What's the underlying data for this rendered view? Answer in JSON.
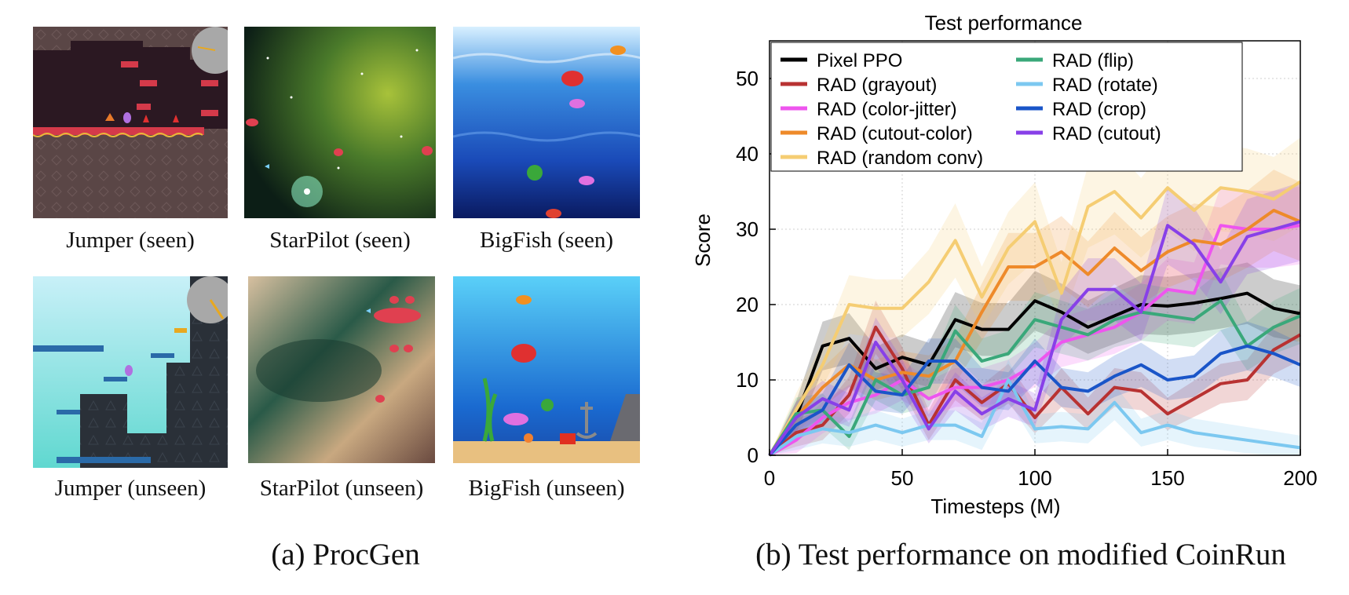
{
  "panel_a": {
    "thumbnails": [
      {
        "label": "Jumper (seen)"
      },
      {
        "label": "StarPilot (seen)"
      },
      {
        "label": "BigFish (seen)"
      },
      {
        "label": "Jumper (unseen)"
      },
      {
        "label": "StarPilot (unseen)"
      },
      {
        "label": "BigFish (unseen)"
      }
    ],
    "caption": "(a)  ProcGen"
  },
  "panel_b": {
    "caption": "(b)  Test performance on modified CoinRun"
  },
  "chart_data": {
    "type": "line",
    "title": "Test performance",
    "xlabel": "Timesteps (M)",
    "ylabel": "Score",
    "xlim": [
      0,
      200
    ],
    "ylim": [
      0,
      55
    ],
    "xticks": [
      0,
      50,
      100,
      150,
      200
    ],
    "yticks": [
      0,
      10,
      20,
      30,
      40,
      50
    ],
    "grid": true,
    "legend_position": "top-left",
    "x": [
      0,
      10,
      20,
      30,
      40,
      50,
      60,
      70,
      80,
      90,
      100,
      110,
      120,
      130,
      140,
      150,
      160,
      170,
      180,
      190,
      200
    ],
    "series": [
      {
        "name": "Pixel PPO",
        "color": "#000000",
        "values": [
          0,
          5,
          14.5,
          15.5,
          11.5,
          13,
          12,
          18,
          16.7,
          16.7,
          20.5,
          19,
          17,
          18.5,
          20,
          19.8,
          20.2,
          20.8,
          21.5,
          19.5,
          18.8
        ]
      },
      {
        "name": "RAD (grayout)",
        "color": "#b83232",
        "values": [
          0,
          3,
          4,
          8,
          17,
          11.5,
          4,
          10,
          7,
          9.5,
          5,
          9,
          5.5,
          9,
          8.5,
          5.5,
          7.5,
          9.5,
          10,
          14,
          16
        ]
      },
      {
        "name": "RAD (color-jitter)",
        "color": "#ee55ee",
        "values": [
          0,
          2,
          5,
          7,
          8,
          10,
          7.5,
          9,
          9,
          10,
          12,
          15,
          16,
          17,
          19,
          22,
          21.5,
          30.5,
          30,
          30,
          30.5
        ]
      },
      {
        "name": "RAD (cutout-color)",
        "color": "#ee8a2a",
        "values": [
          0,
          5,
          9,
          12,
          10,
          11,
          10.5,
          12.5,
          19,
          25,
          25,
          27,
          24,
          27.5,
          24.5,
          27,
          28.5,
          28,
          30,
          32.5,
          31
        ]
      },
      {
        "name": "RAD (random conv)",
        "color": "#f5cd73",
        "values": [
          0,
          6,
          12,
          20,
          19.5,
          19.5,
          23,
          28.5,
          21,
          27.5,
          31,
          21.5,
          33,
          35,
          31.5,
          35.5,
          32.5,
          35.5,
          35,
          34,
          36.3
        ]
      },
      {
        "name": "RAD (flip)",
        "color": "#3aa87a",
        "values": [
          0,
          5.5,
          6,
          2.5,
          10,
          8,
          9,
          16.5,
          12.5,
          13.5,
          18,
          17,
          16,
          18,
          19,
          18.5,
          18,
          20.5,
          14.5,
          17,
          18.5
        ]
      },
      {
        "name": "RAD (rotate)",
        "color": "#7cc8f0",
        "values": [
          0,
          2.5,
          3.5,
          3,
          4,
          3,
          4,
          4,
          2.5,
          10,
          3.5,
          3.8,
          3.5,
          7,
          3,
          4,
          3,
          2.5,
          2,
          1.5,
          1
        ]
      },
      {
        "name": "RAD (crop)",
        "color": "#1a55c8",
        "values": [
          0,
          4,
          6,
          12,
          8.5,
          8,
          12.5,
          12.5,
          9,
          8.5,
          12.5,
          9,
          8.5,
          10.5,
          12,
          10,
          10.5,
          13.5,
          14.5,
          13.5,
          12
        ]
      },
      {
        "name": "RAD (cutout)",
        "color": "#8840e8",
        "values": [
          0,
          5,
          7.5,
          6,
          15,
          10,
          3.5,
          8.5,
          5.5,
          7.5,
          6,
          18,
          22,
          22,
          19,
          30.5,
          28,
          23,
          29,
          30,
          31
        ]
      }
    ]
  }
}
